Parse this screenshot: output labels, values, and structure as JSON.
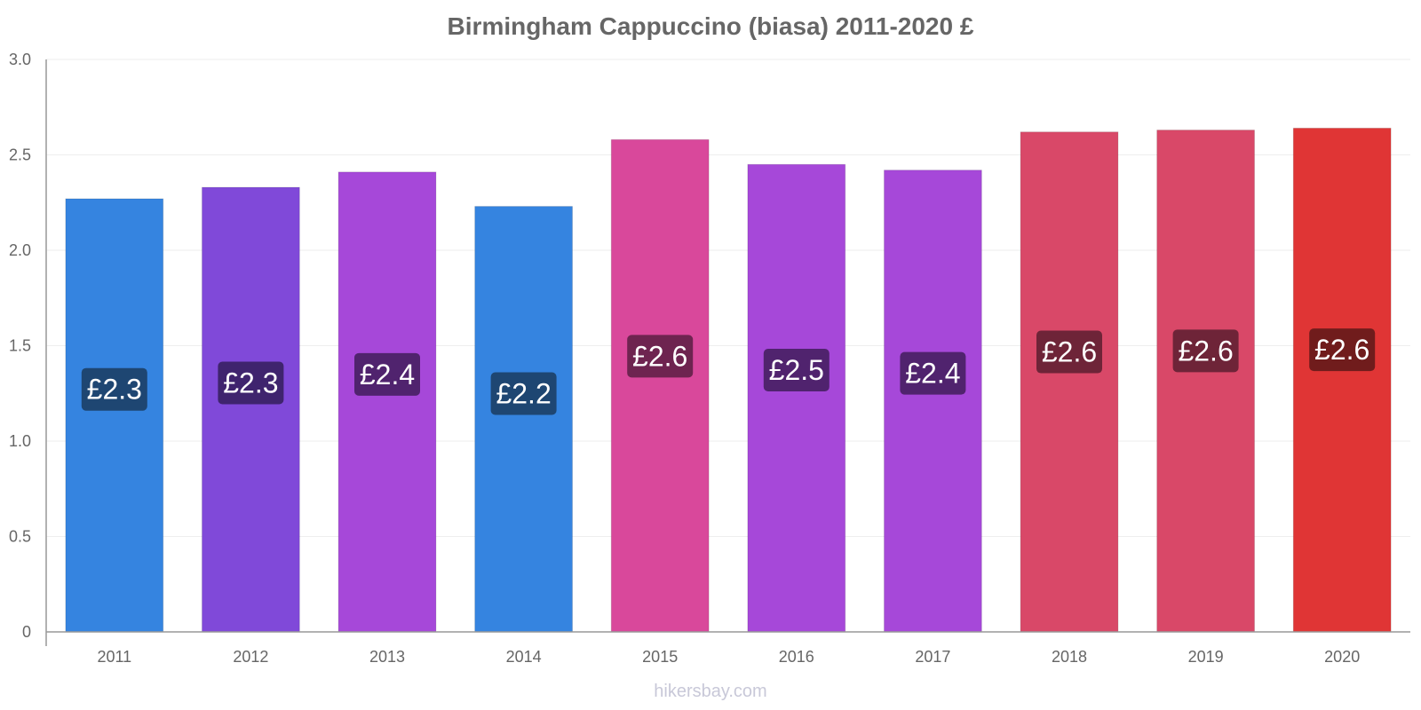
{
  "chart_data": {
    "type": "bar",
    "title": "Birmingham Cappuccino (biasa) 2011-2020 £",
    "xlabel": "",
    "ylabel": "",
    "categories": [
      "2011",
      "2012",
      "2013",
      "2014",
      "2015",
      "2016",
      "2017",
      "2018",
      "2019",
      "2020"
    ],
    "values": [
      2.27,
      2.33,
      2.41,
      2.23,
      2.58,
      2.45,
      2.42,
      2.62,
      2.63,
      2.64
    ],
    "data_labels": [
      "£2.3",
      "£2.3",
      "£2.4",
      "£2.2",
      "£2.6",
      "£2.5",
      "£2.4",
      "£2.6",
      "£2.6",
      "£2.6"
    ],
    "ylim": [
      0,
      3.0
    ],
    "y_ticks": [
      {
        "value": 0,
        "label": "0"
      },
      {
        "value": 0.5,
        "label": "0.5"
      },
      {
        "value": 1.0,
        "label": "1.0"
      },
      {
        "value": 1.5,
        "label": "1.5"
      },
      {
        "value": 2.0,
        "label": "2.0"
      },
      {
        "value": 2.5,
        "label": "2.5"
      },
      {
        "value": 3.0,
        "label": "3.0"
      }
    ],
    "grid": true,
    "legend": "none",
    "bar_colors": [
      "#3584e0",
      "#8049d9",
      "#a648d9",
      "#3584e0",
      "#d9489b",
      "#a648d9",
      "#a648d9",
      "#d94868",
      "#d94868",
      "#e03535"
    ],
    "label_colors": [
      "#1e4672",
      "#3f246e",
      "#50236e",
      "#1e4672",
      "#6e2450",
      "#50236e",
      "#50236e",
      "#6e2438",
      "#6e2438",
      "#701c1c"
    ]
  },
  "watermark": "hikersbay.com"
}
